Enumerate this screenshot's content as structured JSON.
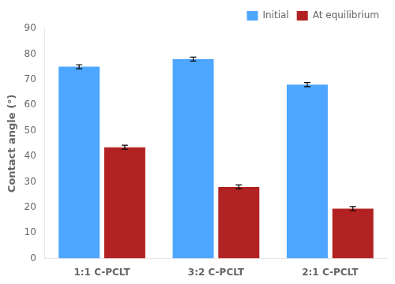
{
  "chart_data": {
    "type": "bar",
    "categories": [
      "1:1 C-PCLT",
      "3:2 C-PCLT",
      "2:1 C-PCLT"
    ],
    "series": [
      {
        "name": "Initial",
        "color": "#4da6ff",
        "values": [
          75.0,
          78.0,
          68.0
        ],
        "errors": [
          0.8,
          0.8,
          0.8
        ]
      },
      {
        "name": "At equilibrium",
        "color": "#b22222",
        "values": [
          43.5,
          28.0,
          19.5
        ],
        "errors": [
          0.8,
          0.8,
          0.8
        ]
      }
    ],
    "ylabel": "Contact angle (°)",
    "ylim": [
      0,
      90
    ],
    "yticks": [
      0,
      10,
      20,
      30,
      40,
      50,
      60,
      70,
      80,
      90
    ],
    "grid": false,
    "legend": "upper right"
  }
}
